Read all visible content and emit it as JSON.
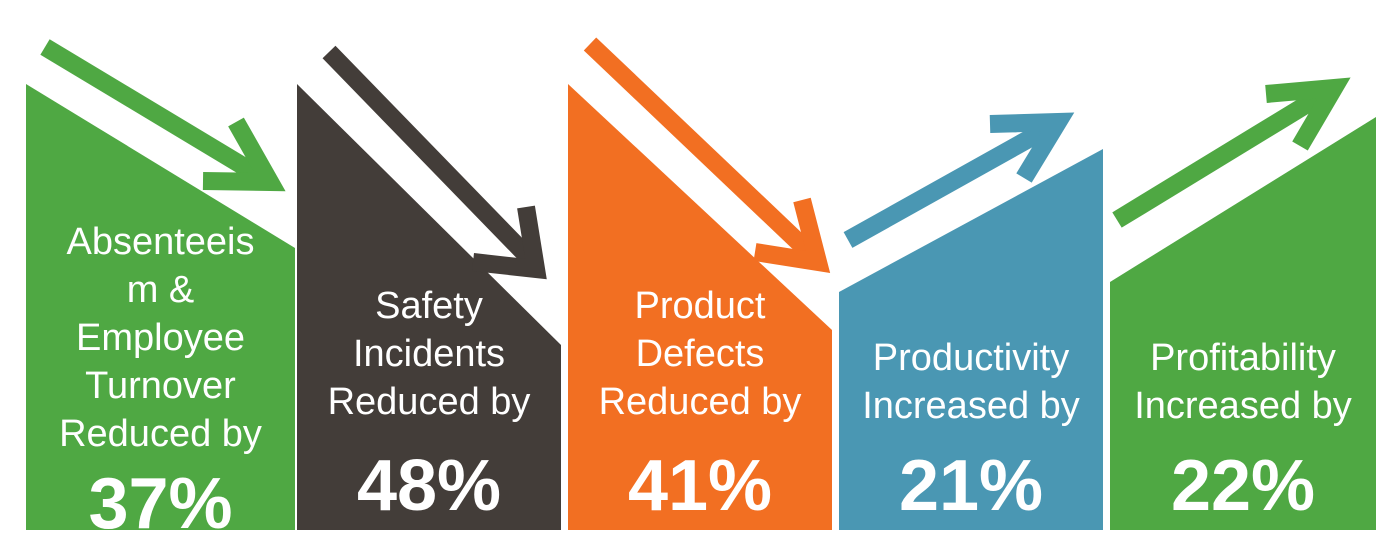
{
  "colors": {
    "green": "#4fa843",
    "charcoal": "#433d39",
    "orange": "#f26f22",
    "teal": "#4a97b3"
  },
  "panels": [
    {
      "name": "absenteeism",
      "color": "#4fa843",
      "arrow_direction": "down",
      "label_lines": [
        "Absenteeis",
        "m &",
        "Employee",
        "Turnover",
        "Reduced by"
      ],
      "value": "37%"
    },
    {
      "name": "safety-incidents",
      "color": "#433d39",
      "arrow_direction": "down",
      "label_lines": [
        "Safety",
        "Incidents",
        "Reduced by"
      ],
      "value": "48%"
    },
    {
      "name": "product-defects",
      "color": "#f26f22",
      "arrow_direction": "down",
      "label_lines": [
        "Product",
        "Defects",
        "Reduced by"
      ],
      "value": "41%"
    },
    {
      "name": "productivity",
      "color": "#4a97b3",
      "arrow_direction": "up",
      "label_lines": [
        "Productivity",
        "Increased by"
      ],
      "value": "21%"
    },
    {
      "name": "profitability",
      "color": "#4fa843",
      "arrow_direction": "up",
      "label_lines": [
        "Profitability",
        "Increased by"
      ],
      "value": "22%"
    }
  ]
}
